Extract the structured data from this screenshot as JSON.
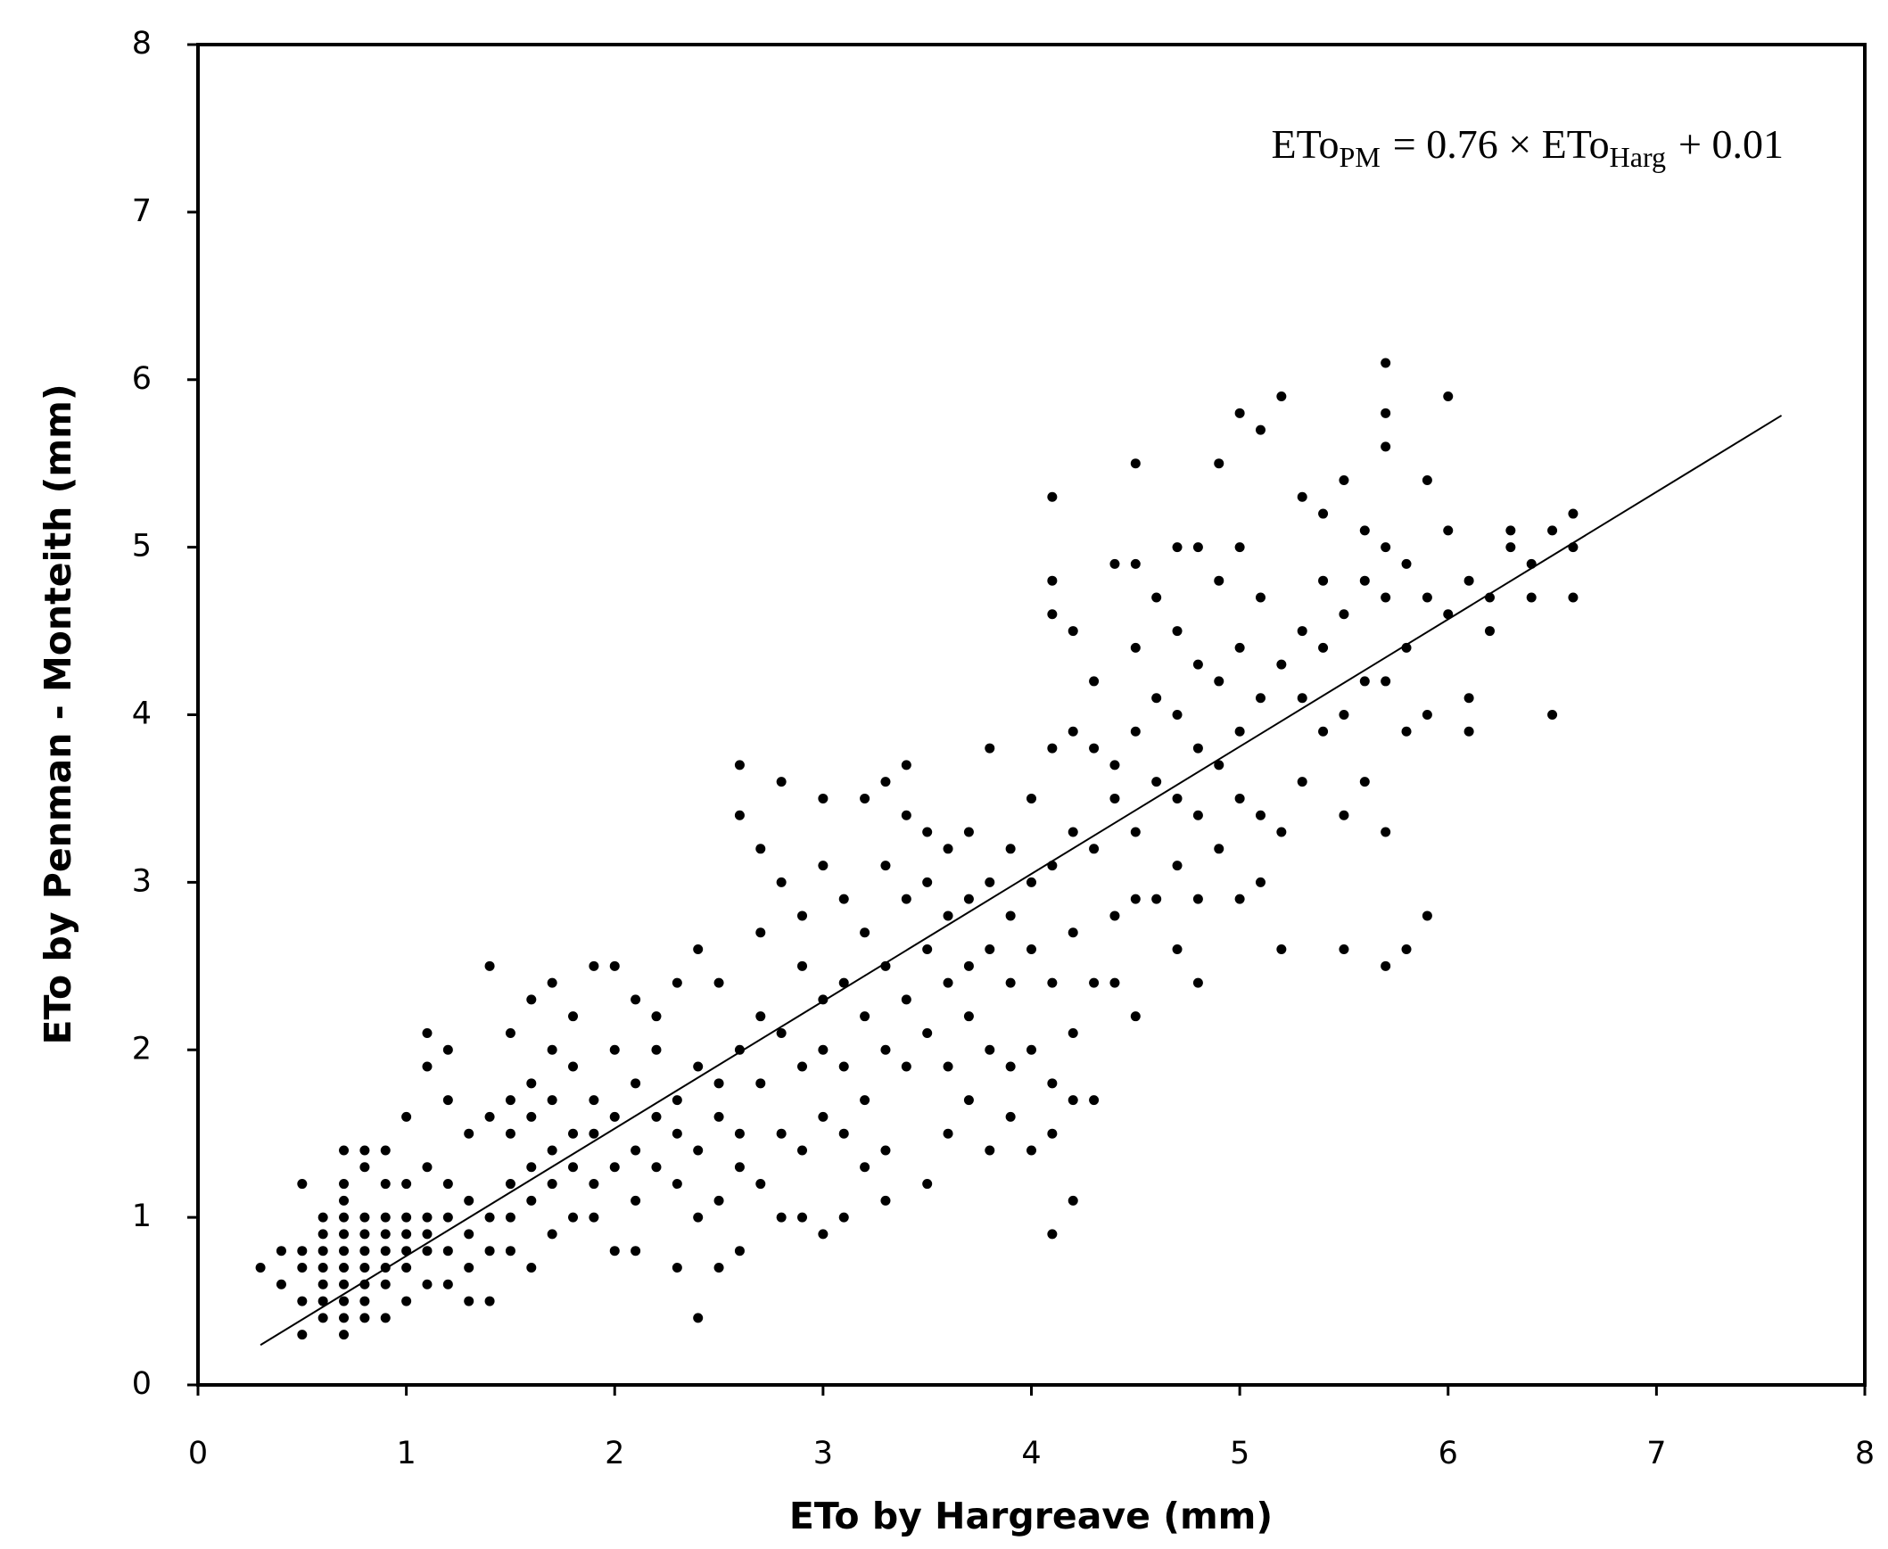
{
  "chart_data": {
    "type": "scatter",
    "x_label": "ETo by Hargreave (mm)",
    "y_label": "ETo by Penman - Monteith (mm)",
    "equation": {
      "lhs": "ETo",
      "lhs_sub": "PM",
      "mid": "= 0.76 × ETo",
      "mid_sub": "Harg",
      "rhs": "+ 0.01"
    },
    "color": "#000000",
    "xlim": [
      0,
      8
    ],
    "ylim": [
      0,
      8
    ],
    "xticks": [
      0,
      1,
      2,
      3,
      4,
      5,
      6,
      7,
      8
    ],
    "yticks": [
      0,
      1,
      2,
      3,
      4,
      5,
      6,
      7,
      8
    ],
    "x": [
      0.3,
      0.4,
      0.4,
      0.5,
      0.5,
      0.5,
      0.5,
      0.5,
      0.6,
      0.6,
      0.6,
      0.6,
      0.6,
      0.6,
      0.6,
      0.7,
      0.7,
      0.7,
      0.7,
      0.7,
      0.7,
      0.7,
      0.7,
      0.7,
      0.7,
      0.7,
      0.8,
      0.8,
      0.8,
      0.8,
      0.8,
      0.8,
      0.8,
      0.8,
      0.8,
      0.9,
      0.9,
      0.9,
      0.9,
      0.9,
      0.9,
      0.9,
      0.9,
      1.0,
      1.0,
      1.0,
      1.0,
      1.0,
      1.0,
      1.0,
      1.1,
      1.1,
      1.1,
      1.1,
      1.1,
      1.1,
      1.1,
      1.2,
      1.2,
      1.2,
      1.2,
      1.2,
      1.2,
      1.3,
      1.3,
      1.3,
      1.3,
      1.3,
      1.4,
      1.4,
      1.4,
      1.4,
      1.4,
      1.5,
      1.5,
      1.5,
      1.5,
      1.5,
      1.5,
      1.6,
      1.6,
      1.6,
      1.6,
      1.6,
      1.6,
      1.7,
      1.7,
      1.7,
      1.7,
      1.7,
      1.7,
      1.8,
      1.8,
      1.8,
      1.8,
      1.8,
      1.9,
      1.9,
      1.9,
      1.9,
      1.9,
      2.0,
      2.0,
      2.0,
      2.0,
      2.0,
      2.1,
      2.1,
      2.1,
      2.1,
      2.1,
      2.2,
      2.2,
      2.2,
      2.2,
      2.3,
      2.3,
      2.3,
      2.3,
      2.3,
      2.4,
      2.4,
      2.4,
      2.4,
      2.4,
      2.5,
      2.5,
      2.5,
      2.5,
      2.5,
      2.6,
      2.6,
      2.6,
      2.6,
      2.6,
      2.6,
      2.7,
      2.7,
      2.7,
      2.7,
      2.7,
      2.8,
      2.8,
      2.8,
      2.8,
      2.8,
      2.9,
      2.9,
      2.9,
      2.9,
      2.9,
      3.0,
      3.0,
      3.0,
      3.0,
      3.0,
      3.0,
      3.1,
      3.1,
      3.1,
      3.1,
      3.1,
      3.2,
      3.2,
      3.2,
      3.2,
      3.2,
      3.3,
      3.3,
      3.3,
      3.3,
      3.3,
      3.3,
      3.4,
      3.4,
      3.4,
      3.4,
      3.4,
      3.5,
      3.5,
      3.5,
      3.5,
      3.5,
      3.6,
      3.6,
      3.6,
      3.6,
      3.6,
      3.7,
      3.7,
      3.7,
      3.7,
      3.7,
      3.8,
      3.8,
      3.8,
      3.8,
      3.8,
      3.9,
      3.9,
      3.9,
      3.9,
      3.9,
      4.0,
      4.0,
      4.0,
      4.0,
      4.0,
      4.1,
      4.1,
      4.1,
      4.1,
      4.1,
      4.1,
      4.1,
      4.1,
      4.1,
      4.2,
      4.2,
      4.2,
      4.2,
      4.2,
      4.2,
      4.2,
      4.3,
      4.3,
      4.3,
      4.3,
      4.3,
      4.4,
      4.4,
      4.4,
      4.4,
      4.4,
      4.5,
      4.5,
      4.5,
      4.5,
      4.5,
      4.5,
      4.5,
      4.6,
      4.6,
      4.6,
      4.6,
      4.7,
      4.7,
      4.7,
      4.7,
      4.7,
      4.7,
      4.8,
      4.8,
      4.8,
      4.8,
      4.8,
      4.8,
      4.9,
      4.9,
      4.9,
      4.9,
      4.9,
      5.0,
      5.0,
      5.0,
      5.0,
      5.0,
      5.0,
      5.1,
      5.1,
      5.1,
      5.1,
      5.1,
      5.2,
      5.2,
      5.2,
      5.2,
      5.3,
      5.3,
      5.3,
      5.3,
      5.4,
      5.4,
      5.4,
      5.4,
      5.5,
      5.5,
      5.5,
      5.5,
      5.5,
      5.6,
      5.6,
      5.6,
      5.6,
      5.7,
      5.7,
      5.7,
      5.7,
      5.7,
      5.7,
      5.7,
      5.7,
      5.8,
      5.8,
      5.8,
      5.8,
      5.9,
      5.9,
      5.9,
      5.9,
      6.0,
      6.0,
      6.0,
      6.1,
      6.1,
      6.1,
      6.2,
      6.2,
      6.3,
      6.3,
      6.4,
      6.4,
      6.5,
      6.5,
      6.6,
      6.6,
      6.6
    ],
    "values": [
      0.7,
      0.6,
      0.8,
      0.3,
      0.5,
      0.7,
      0.8,
      1.2,
      0.4,
      0.5,
      0.6,
      0.7,
      0.8,
      0.9,
      1.0,
      0.3,
      0.4,
      0.5,
      0.6,
      0.7,
      0.8,
      0.9,
      1.0,
      1.1,
      1.2,
      1.4,
      0.4,
      0.5,
      0.6,
      0.7,
      0.8,
      0.9,
      1.0,
      1.3,
      1.4,
      0.4,
      0.6,
      0.7,
      0.8,
      0.9,
      1.0,
      1.2,
      1.4,
      0.5,
      0.7,
      0.8,
      0.9,
      1.0,
      1.2,
      1.6,
      0.6,
      0.8,
      0.9,
      1.0,
      1.3,
      1.9,
      2.1,
      0.6,
      0.8,
      1.0,
      1.2,
      1.7,
      2.0,
      0.5,
      0.7,
      0.9,
      1.1,
      1.5,
      0.5,
      0.8,
      1.0,
      1.6,
      2.5,
      0.8,
      1.0,
      1.2,
      1.5,
      1.7,
      2.1,
      0.7,
      1.1,
      1.3,
      1.6,
      1.8,
      2.3,
      0.9,
      1.2,
      1.4,
      1.7,
      2.0,
      2.4,
      1.0,
      1.3,
      1.5,
      1.9,
      2.2,
      1.0,
      1.2,
      1.5,
      1.7,
      2.5,
      0.8,
      1.3,
      1.6,
      2.0,
      2.5,
      0.8,
      1.1,
      1.4,
      1.8,
      2.3,
      1.3,
      1.6,
      2.0,
      2.2,
      0.7,
      1.2,
      1.5,
      1.7,
      2.4,
      0.4,
      1.0,
      1.4,
      1.9,
      2.6,
      0.7,
      1.1,
      1.6,
      1.8,
      2.4,
      0.8,
      1.3,
      1.5,
      2.0,
      3.4,
      3.7,
      1.2,
      1.8,
      2.2,
      2.7,
      3.2,
      1.0,
      1.5,
      2.1,
      3.0,
      3.6,
      1.0,
      1.4,
      1.9,
      2.5,
      2.8,
      0.9,
      1.6,
      2.0,
      2.3,
      3.1,
      3.5,
      1.0,
      1.5,
      1.9,
      2.4,
      2.9,
      1.3,
      1.7,
      2.2,
      2.7,
      3.5,
      1.1,
      1.4,
      2.0,
      2.5,
      3.1,
      3.6,
      1.9,
      2.3,
      2.9,
      3.4,
      3.7,
      1.2,
      2.1,
      2.6,
      3.0,
      3.3,
      1.5,
      1.9,
      2.4,
      2.8,
      3.2,
      1.7,
      2.2,
      2.5,
      2.9,
      3.3,
      1.4,
      2.0,
      2.6,
      3.0,
      3.8,
      1.6,
      1.9,
      2.4,
      2.8,
      3.2,
      1.4,
      2.0,
      2.6,
      3.0,
      3.5,
      0.9,
      1.5,
      1.8,
      2.4,
      3.1,
      3.8,
      4.6,
      4.8,
      5.3,
      1.1,
      1.7,
      2.1,
      2.7,
      3.3,
      3.9,
      4.5,
      1.7,
      2.4,
      3.2,
      3.8,
      4.2,
      2.4,
      2.8,
      3.5,
      3.7,
      4.9,
      2.2,
      2.9,
      3.3,
      3.9,
      4.4,
      4.9,
      5.5,
      2.9,
      3.6,
      4.1,
      4.7,
      2.6,
      3.1,
      3.5,
      4.0,
      4.5,
      5.0,
      2.4,
      2.9,
      3.4,
      3.8,
      4.3,
      5.0,
      3.2,
      3.7,
      4.2,
      4.8,
      5.5,
      2.9,
      3.5,
      3.9,
      4.4,
      5.0,
      5.8,
      3.0,
      3.4,
      4.1,
      4.7,
      5.7,
      2.6,
      3.3,
      4.3,
      5.9,
      3.6,
      4.1,
      4.5,
      5.3,
      3.9,
      4.4,
      4.8,
      5.2,
      2.6,
      3.4,
      4.0,
      4.6,
      5.4,
      3.6,
      4.2,
      4.8,
      5.1,
      2.5,
      3.3,
      4.2,
      4.7,
      5.0,
      5.6,
      5.8,
      6.1,
      2.6,
      3.9,
      4.4,
      4.9,
      2.8,
      4.0,
      4.7,
      5.4,
      4.6,
      5.1,
      5.9,
      3.9,
      4.1,
      4.8,
      4.5,
      4.7,
      5.0,
      5.1,
      4.7,
      4.9,
      4.0,
      5.1,
      4.7,
      5.0,
      5.2
    ],
    "trendline": {
      "x": [
        0.3,
        7.6
      ],
      "values": [
        0.238,
        5.786
      ]
    }
  }
}
